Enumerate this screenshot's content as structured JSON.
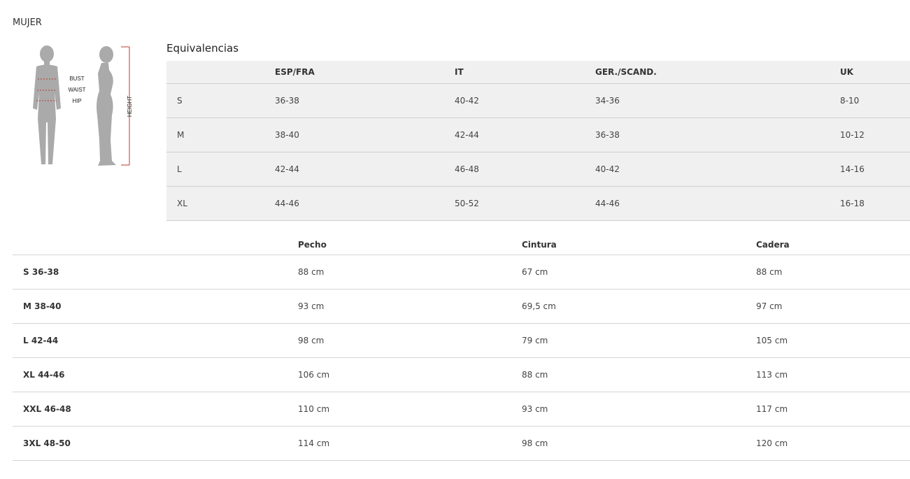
{
  "title": "MUJER",
  "figure": {
    "labels": [
      "BUST",
      "WAIST",
      "HIP"
    ],
    "height_label": "HEIGHT",
    "accent": "#c0392b"
  },
  "equivalences": {
    "heading": "Equivalencias",
    "headers": [
      "",
      "ESP/FRA",
      "IT",
      "GER./SCAND.",
      "UK"
    ],
    "rows": [
      [
        "S",
        "36-38",
        "40-42",
        "34-36",
        "8-10"
      ],
      [
        "M",
        "38-40",
        "42-44",
        "36-38",
        "10-12"
      ],
      [
        "L",
        "42-44",
        "46-48",
        "40-42",
        "14-16"
      ],
      [
        "XL",
        "44-46",
        "50-52",
        "44-46",
        "16-18"
      ]
    ]
  },
  "measurements": {
    "headers": [
      "",
      "Pecho",
      "Cintura",
      "Cadera"
    ],
    "rows": [
      [
        "S 36-38",
        "88 cm",
        "67 cm",
        "88 cm"
      ],
      [
        "M 38-40",
        "93 cm",
        "69,5 cm",
        "97 cm"
      ],
      [
        "L 42-44",
        "98 cm",
        "79 cm",
        "105 cm"
      ],
      [
        "XL 44-46",
        "106 cm",
        "88 cm",
        "113 cm"
      ],
      [
        "XXL 46-48",
        "110 cm",
        "93 cm",
        "117 cm"
      ],
      [
        "3XL 48-50",
        "114 cm",
        "98 cm",
        "120 cm"
      ]
    ]
  }
}
